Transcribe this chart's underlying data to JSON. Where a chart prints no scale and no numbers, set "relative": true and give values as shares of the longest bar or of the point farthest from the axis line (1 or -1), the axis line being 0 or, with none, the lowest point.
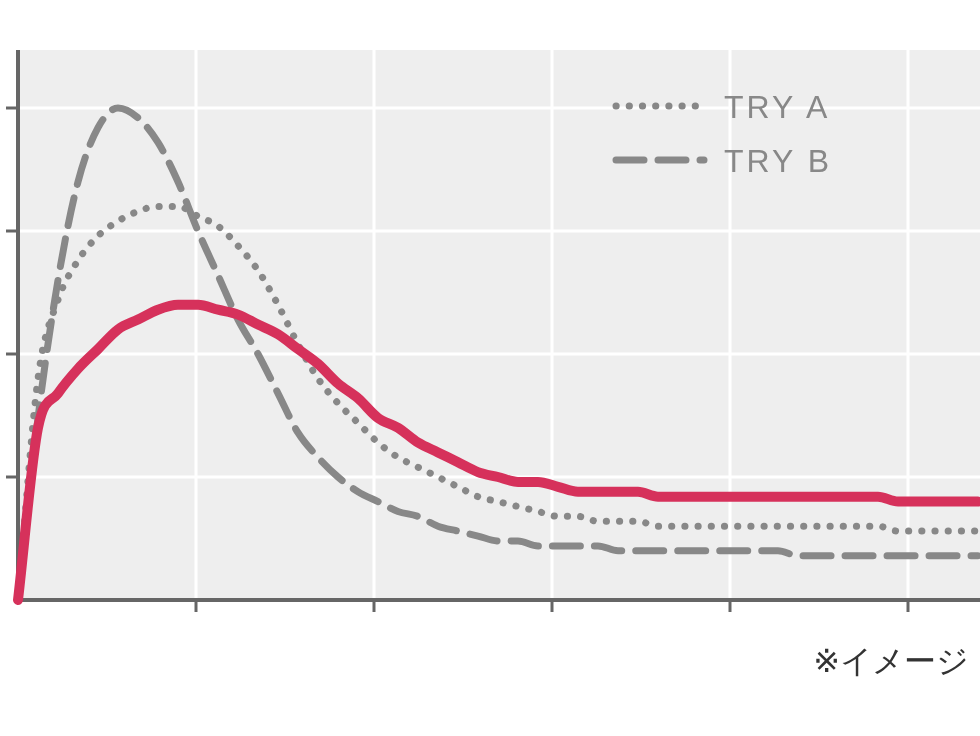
{
  "chart_data": {
    "type": "line",
    "relative": true,
    "grid": true,
    "legend": "top right",
    "categories": [
      null,
      null,
      null,
      null,
      null,
      null,
      null,
      null,
      null,
      null,
      null,
      null,
      null,
      null,
      null,
      null,
      null,
      null,
      null,
      null,
      null,
      null,
      null,
      null,
      null,
      null,
      null,
      null,
      null,
      null,
      null,
      null,
      null,
      null,
      null,
      null,
      null,
      null,
      null,
      null,
      null,
      null,
      null,
      null,
      null,
      null,
      null,
      null,
      null
    ],
    "series": [
      {
        "color": "#d6315b",
        "line_style": "solid",
        "values": [
          0,
          0.35,
          0.42,
          0.47,
          0.51,
          0.55,
          0.57,
          0.59,
          0.6,
          0.6,
          0.59,
          0.58,
          0.56,
          0.54,
          0.51,
          0.48,
          0.44,
          0.41,
          0.37,
          0.35,
          0.32,
          0.3,
          0.28,
          0.26,
          0.25,
          0.24,
          0.24,
          0.23,
          0.22,
          0.22,
          0.22,
          0.22,
          0.21,
          0.21,
          0.21,
          0.21,
          0.21,
          0.21,
          0.21,
          0.21,
          0.21,
          0.21,
          0.21,
          0.21,
          0.2,
          0.2,
          0.2,
          0.2,
          0.2
        ]
      },
      {
        "name": "TRY A",
        "color": "#888888",
        "line_style": "dotted",
        "values": [
          0,
          0.45,
          0.61,
          0.69,
          0.74,
          0.77,
          0.79,
          0.8,
          0.8,
          0.78,
          0.76,
          0.72,
          0.67,
          0.6,
          0.52,
          0.45,
          0.4,
          0.36,
          0.32,
          0.29,
          0.27,
          0.25,
          0.23,
          0.21,
          0.2,
          0.19,
          0.18,
          0.17,
          0.17,
          0.16,
          0.16,
          0.16,
          0.15,
          0.15,
          0.15,
          0.15,
          0.15,
          0.15,
          0.15,
          0.15,
          0.15,
          0.15,
          0.15,
          0.15,
          0.14,
          0.14,
          0.14,
          0.14,
          0.14
        ]
      },
      {
        "name": "TRY B",
        "color": "#888888",
        "line_style": "dashed",
        "values": [
          0,
          0.37,
          0.65,
          0.85,
          0.96,
          1,
          0.98,
          0.93,
          0.85,
          0.75,
          0.66,
          0.57,
          0.5,
          0.42,
          0.34,
          0.29,
          0.25,
          0.22,
          0.2,
          0.18,
          0.17,
          0.15,
          0.14,
          0.13,
          0.12,
          0.12,
          0.11,
          0.11,
          0.11,
          0.11,
          0.1,
          0.1,
          0.1,
          0.1,
          0.1,
          0.1,
          0.1,
          0.1,
          0.1,
          0.09,
          0.09,
          0.09,
          0.09,
          0.09,
          0.09,
          0.09,
          0.09,
          0.09,
          0.09
        ]
      }
    ],
    "annotations": [
      "※イメージ"
    ]
  }
}
